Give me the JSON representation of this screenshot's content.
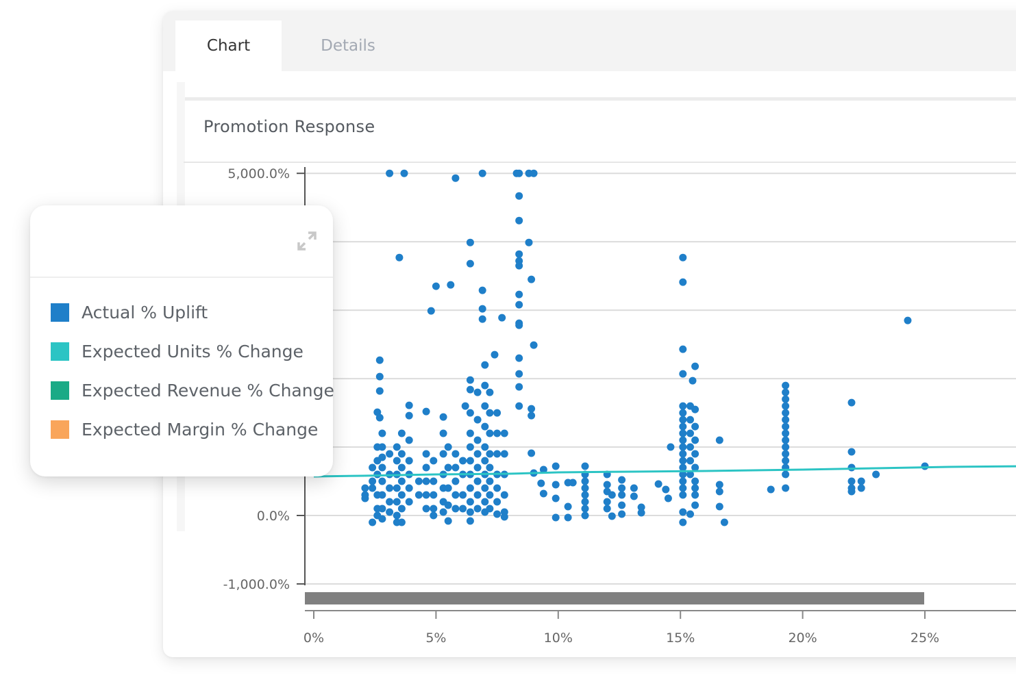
{
  "tabs": [
    {
      "label": "Chart",
      "active": true
    },
    {
      "label": "Details",
      "active": false
    }
  ],
  "colors": {
    "actual": "#1f7fc9",
    "units": "#2cc4c4",
    "revenue": "#1aaa86",
    "margin": "#f9a55a",
    "scrollbar": "#808080"
  },
  "legend": {
    "expand_icon": "expand-icon",
    "items": [
      {
        "label": "Actual % Uplift",
        "color": "#1f7fc9"
      },
      {
        "label": "Expected Units % Change",
        "color": "#2cc4c4"
      },
      {
        "label": "Expected Revenue % Change",
        "color": "#1aaa86"
      },
      {
        "label": "Expected Margin % Change",
        "color": "#f9a55a"
      }
    ]
  },
  "chart_data": {
    "type": "scatter",
    "title": "Promotion Response",
    "xlabel": "",
    "ylabel": "",
    "y_ticks": [
      "5,000.0%",
      "0.0%",
      "-1,000.0%"
    ],
    "x_ticks": [
      "0%",
      "5%",
      "10%",
      "15%",
      "20%",
      "25%"
    ],
    "x_tick_values": [
      0,
      5,
      10,
      15,
      20,
      25
    ],
    "y_tick_values": [
      5000,
      0,
      -1000
    ],
    "xlim": [
      0,
      29
    ],
    "ylim": [
      -1000,
      5000
    ],
    "grid": true,
    "legend_position": "left-overlay",
    "series": [
      {
        "name": "Actual % Uplift",
        "color": "#1f7fc9",
        "points": [
          [
            3.1,
            5000
          ],
          [
            3.7,
            5000
          ],
          [
            5.8,
            4930
          ],
          [
            6.9,
            5000
          ],
          [
            8.3,
            5000
          ],
          [
            8.4,
            5000
          ],
          [
            8.8,
            5000
          ],
          [
            9.0,
            5000
          ],
          [
            8.4,
            4670
          ],
          [
            8.4,
            4310
          ],
          [
            3.5,
            3770
          ],
          [
            6.4,
            3990
          ],
          [
            6.4,
            3680
          ],
          [
            8.8,
            3990
          ],
          [
            8.4,
            3820
          ],
          [
            8.4,
            3720
          ],
          [
            8.4,
            3650
          ],
          [
            15.1,
            3770
          ],
          [
            15.1,
            3410
          ],
          [
            8.9,
            3450
          ],
          [
            5.0,
            3350
          ],
          [
            5.6,
            3370
          ],
          [
            6.9,
            3290
          ],
          [
            8.4,
            3230
          ],
          [
            8.4,
            3080
          ],
          [
            4.8,
            2990
          ],
          [
            6.9,
            3020
          ],
          [
            6.9,
            2870
          ],
          [
            7.7,
            2890
          ],
          [
            8.4,
            2810
          ],
          [
            8.4,
            2780
          ],
          [
            24.3,
            2850
          ],
          [
            2.7,
            2270
          ],
          [
            2.7,
            2030
          ],
          [
            2.7,
            1820
          ],
          [
            2.6,
            1510
          ],
          [
            2.7,
            1430
          ],
          [
            3.9,
            1610
          ],
          [
            3.9,
            1460
          ],
          [
            4.6,
            1520
          ],
          [
            5.3,
            1440
          ],
          [
            6.2,
            1600
          ],
          [
            6.4,
            1980
          ],
          [
            6.4,
            1840
          ],
          [
            7.4,
            2350
          ],
          [
            8.4,
            2300
          ],
          [
            9.0,
            2490
          ],
          [
            15.1,
            2430
          ],
          [
            15.6,
            2180
          ],
          [
            15.1,
            2070
          ],
          [
            15.5,
            1970
          ],
          [
            8.4,
            2070
          ],
          [
            8.4,
            1880
          ],
          [
            8.4,
            1600
          ],
          [
            8.9,
            1560
          ],
          [
            8.9,
            1460
          ],
          [
            22.0,
            1650
          ],
          [
            16.6,
            1100
          ],
          [
            14.6,
            1000
          ],
          [
            19.3,
            1900
          ],
          [
            19.3,
            1800
          ],
          [
            19.3,
            1700
          ],
          [
            19.3,
            1600
          ],
          [
            19.3,
            1500
          ],
          [
            19.3,
            1400
          ],
          [
            19.3,
            1300
          ],
          [
            19.3,
            1200
          ],
          [
            19.3,
            1100
          ],
          [
            19.3,
            1000
          ],
          [
            19.3,
            900
          ],
          [
            19.3,
            800
          ],
          [
            19.3,
            700
          ],
          [
            19.3,
            600
          ],
          [
            19.3,
            400
          ],
          [
            22.0,
            930
          ],
          [
            22.0,
            700
          ],
          [
            22.0,
            500
          ],
          [
            22.0,
            400
          ],
          [
            22.0,
            350
          ],
          [
            22.4,
            500
          ],
          [
            22.4,
            400
          ],
          [
            23.0,
            600
          ],
          [
            25.0,
            720
          ],
          [
            18.7,
            380
          ],
          [
            8.9,
            910
          ],
          [
            9.0,
            620
          ],
          [
            9.4,
            670
          ],
          [
            9.3,
            470
          ],
          [
            9.4,
            320
          ],
          [
            9.9,
            720
          ],
          [
            9.9,
            450
          ],
          [
            10.4,
            480
          ],
          [
            10.6,
            480
          ],
          [
            9.9,
            250
          ],
          [
            9.9,
            -30
          ],
          [
            10.4,
            -30
          ],
          [
            10.4,
            130
          ],
          [
            11.1,
            720
          ],
          [
            11.1,
            600
          ],
          [
            11.1,
            500
          ],
          [
            11.1,
            400
          ],
          [
            11.1,
            300
          ],
          [
            11.1,
            200
          ],
          [
            11.1,
            100
          ],
          [
            11.1,
            0
          ],
          [
            12.0,
            600
          ],
          [
            12.0,
            450
          ],
          [
            12.0,
            350
          ],
          [
            12.0,
            200
          ],
          [
            12.0,
            100
          ],
          [
            12.2,
            300
          ],
          [
            12.2,
            -10
          ],
          [
            12.6,
            520
          ],
          [
            12.6,
            400
          ],
          [
            12.6,
            300
          ],
          [
            12.6,
            150
          ],
          [
            12.6,
            20
          ],
          [
            13.1,
            400
          ],
          [
            13.1,
            280
          ],
          [
            13.4,
            120
          ],
          [
            13.4,
            40
          ],
          [
            14.1,
            460
          ],
          [
            14.4,
            380
          ],
          [
            14.5,
            250
          ],
          [
            15.1,
            1600
          ],
          [
            15.1,
            1500
          ],
          [
            15.1,
            1400
          ],
          [
            15.1,
            1300
          ],
          [
            15.1,
            1200
          ],
          [
            15.1,
            1100
          ],
          [
            15.1,
            1000
          ],
          [
            15.1,
            900
          ],
          [
            15.1,
            800
          ],
          [
            15.1,
            700
          ],
          [
            15.1,
            600
          ],
          [
            15.1,
            500
          ],
          [
            15.1,
            400
          ],
          [
            15.1,
            300
          ],
          [
            15.4,
            1600
          ],
          [
            15.4,
            1400
          ],
          [
            15.4,
            1200
          ],
          [
            15.4,
            1000
          ],
          [
            15.4,
            800
          ],
          [
            15.4,
            600
          ],
          [
            15.6,
            1550
          ],
          [
            15.6,
            1300
          ],
          [
            15.6,
            1100
          ],
          [
            15.6,
            900
          ],
          [
            15.6,
            700
          ],
          [
            15.6,
            500
          ],
          [
            15.6,
            400
          ],
          [
            15.6,
            300
          ],
          [
            15.1,
            50
          ],
          [
            15.1,
            -100
          ],
          [
            15.4,
            20
          ],
          [
            15.6,
            150
          ],
          [
            16.6,
            450
          ],
          [
            16.6,
            350
          ],
          [
            16.6,
            130
          ],
          [
            16.8,
            -100
          ],
          [
            2.1,
            400
          ],
          [
            2.1,
            300
          ],
          [
            2.1,
            250
          ],
          [
            2.4,
            700
          ],
          [
            2.4,
            500
          ],
          [
            2.4,
            400
          ],
          [
            2.4,
            -100
          ],
          [
            2.6,
            1000
          ],
          [
            2.6,
            800
          ],
          [
            2.6,
            600
          ],
          [
            2.6,
            300
          ],
          [
            2.6,
            100
          ],
          [
            2.6,
            0
          ],
          [
            2.8,
            1200
          ],
          [
            2.8,
            1000
          ],
          [
            2.8,
            850
          ],
          [
            2.8,
            700
          ],
          [
            2.8,
            500
          ],
          [
            2.8,
            300
          ],
          [
            2.8,
            100
          ],
          [
            2.8,
            -50
          ],
          [
            3.1,
            900
          ],
          [
            3.1,
            600
          ],
          [
            3.1,
            400
          ],
          [
            3.1,
            200
          ],
          [
            3.1,
            50
          ],
          [
            3.4,
            1000
          ],
          [
            3.4,
            800
          ],
          [
            3.4,
            600
          ],
          [
            3.4,
            400
          ],
          [
            3.4,
            200
          ],
          [
            3.4,
            0
          ],
          [
            3.4,
            -100
          ],
          [
            3.6,
            1200
          ],
          [
            3.6,
            900
          ],
          [
            3.6,
            700
          ],
          [
            3.6,
            500
          ],
          [
            3.6,
            300
          ],
          [
            3.6,
            100
          ],
          [
            3.6,
            -100
          ],
          [
            3.9,
            1100
          ],
          [
            3.9,
            800
          ],
          [
            3.9,
            600
          ],
          [
            3.9,
            400
          ],
          [
            3.9,
            200
          ],
          [
            4.3,
            500
          ],
          [
            4.3,
            300
          ],
          [
            4.6,
            900
          ],
          [
            4.6,
            700
          ],
          [
            4.6,
            500
          ],
          [
            4.6,
            300
          ],
          [
            4.6,
            100
          ],
          [
            4.9,
            800
          ],
          [
            4.9,
            500
          ],
          [
            4.9,
            300
          ],
          [
            4.9,
            100
          ],
          [
            4.9,
            0
          ],
          [
            5.3,
            1200
          ],
          [
            5.3,
            900
          ],
          [
            5.3,
            600
          ],
          [
            5.3,
            400
          ],
          [
            5.3,
            200
          ],
          [
            5.3,
            50
          ],
          [
            5.5,
            1000
          ],
          [
            5.5,
            700
          ],
          [
            5.5,
            400
          ],
          [
            5.5,
            150
          ],
          [
            5.5,
            -80
          ],
          [
            5.8,
            900
          ],
          [
            5.8,
            700
          ],
          [
            5.8,
            500
          ],
          [
            5.8,
            300
          ],
          [
            5.8,
            100
          ],
          [
            6.1,
            800
          ],
          [
            6.1,
            600
          ],
          [
            6.1,
            300
          ],
          [
            6.1,
            100
          ],
          [
            6.4,
            1500
          ],
          [
            6.4,
            1200
          ],
          [
            6.4,
            1000
          ],
          [
            6.4,
            800
          ],
          [
            6.4,
            600
          ],
          [
            6.4,
            400
          ],
          [
            6.4,
            200
          ],
          [
            6.4,
            50
          ],
          [
            6.4,
            -80
          ],
          [
            6.7,
            1800
          ],
          [
            6.7,
            1400
          ],
          [
            6.7,
            1100
          ],
          [
            6.7,
            900
          ],
          [
            6.7,
            700
          ],
          [
            6.7,
            500
          ],
          [
            6.7,
            300
          ],
          [
            6.7,
            100
          ],
          [
            7.0,
            2200
          ],
          [
            7.0,
            1900
          ],
          [
            7.0,
            1600
          ],
          [
            7.0,
            1300
          ],
          [
            7.0,
            1000
          ],
          [
            7.0,
            800
          ],
          [
            7.0,
            600
          ],
          [
            7.0,
            400
          ],
          [
            7.0,
            200
          ],
          [
            7.0,
            50
          ],
          [
            7.2,
            1800
          ],
          [
            7.2,
            1500
          ],
          [
            7.2,
            1200
          ],
          [
            7.2,
            900
          ],
          [
            7.2,
            700
          ],
          [
            7.2,
            500
          ],
          [
            7.2,
            300
          ],
          [
            7.2,
            100
          ],
          [
            7.5,
            1500
          ],
          [
            7.5,
            1200
          ],
          [
            7.5,
            900
          ],
          [
            7.5,
            600
          ],
          [
            7.5,
            400
          ],
          [
            7.5,
            200
          ],
          [
            7.5,
            20
          ],
          [
            7.8,
            1200
          ],
          [
            7.8,
            900
          ],
          [
            7.8,
            600
          ],
          [
            7.8,
            300
          ],
          [
            7.8,
            50
          ],
          [
            7.8,
            -20
          ]
        ]
      },
      {
        "name": "Expected Units % Change",
        "color": "#2cc4c4",
        "line": [
          [
            0,
            570
          ],
          [
            2,
            580
          ],
          [
            5,
            600
          ],
          [
            8,
            610
          ],
          [
            10,
            630
          ],
          [
            13,
            640
          ],
          [
            16,
            650
          ],
          [
            20,
            670
          ],
          [
            23,
            690
          ],
          [
            26,
            710
          ],
          [
            29,
            720
          ]
        ]
      }
    ]
  }
}
